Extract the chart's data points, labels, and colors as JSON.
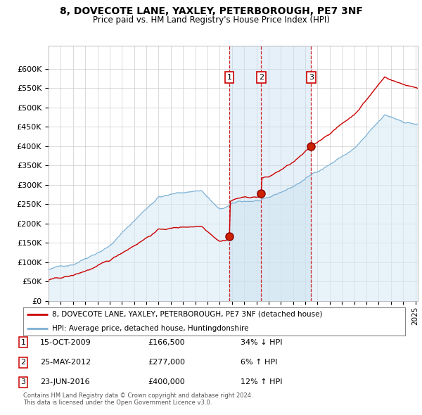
{
  "title": "8, DOVECOTE LANE, YAXLEY, PETERBOROUGH, PE7 3NF",
  "subtitle": "Price paid vs. HM Land Registry's House Price Index (HPI)",
  "ylim": [
    0,
    660000
  ],
  "xlim_start": 1995.0,
  "xlim_end": 2025.2,
  "yticks": [
    0,
    50000,
    100000,
    150000,
    200000,
    250000,
    300000,
    350000,
    400000,
    450000,
    500000,
    550000,
    600000
  ],
  "ytick_labels": [
    "£0",
    "£50K",
    "£100K",
    "£150K",
    "£200K",
    "£250K",
    "£300K",
    "£350K",
    "£400K",
    "£450K",
    "£500K",
    "£550K",
    "£600K"
  ],
  "xticks": [
    1995,
    1996,
    1997,
    1998,
    1999,
    2000,
    2001,
    2002,
    2003,
    2004,
    2005,
    2006,
    2007,
    2008,
    2009,
    2010,
    2011,
    2012,
    2013,
    2014,
    2015,
    2016,
    2017,
    2018,
    2019,
    2020,
    2021,
    2022,
    2023,
    2024,
    2025
  ],
  "sale_dates": [
    2009.79,
    2012.4,
    2016.48
  ],
  "sale_prices": [
    166500,
    277000,
    400000
  ],
  "sale_labels": [
    "1",
    "2",
    "3"
  ],
  "property_line_color": "#cc0000",
  "hpi_line_color": "#7ab0d4",
  "hpi_fill_color": "#d8eaf5",
  "grid_color": "#cccccc",
  "background_color": "#ffffff",
  "legend_label_property": "8, DOVECOTE LANE, YAXLEY, PETERBOROUGH, PE7 3NF (detached house)",
  "legend_label_hpi": "HPI: Average price, detached house, Huntingdonshire",
  "table_entries": [
    {
      "label": "1",
      "date": "15-OCT-2009",
      "price": "£166,500",
      "hpi": "34% ↓ HPI"
    },
    {
      "label": "2",
      "date": "25-MAY-2012",
      "price": "£277,000",
      "hpi": "6% ↑ HPI"
    },
    {
      "label": "3",
      "date": "23-JUN-2016",
      "price": "£400,000",
      "hpi": "12% ↑ HPI"
    }
  ],
  "footnote": "Contains HM Land Registry data © Crown copyright and database right 2024.\nThis data is licensed under the Open Government Licence v3.0."
}
